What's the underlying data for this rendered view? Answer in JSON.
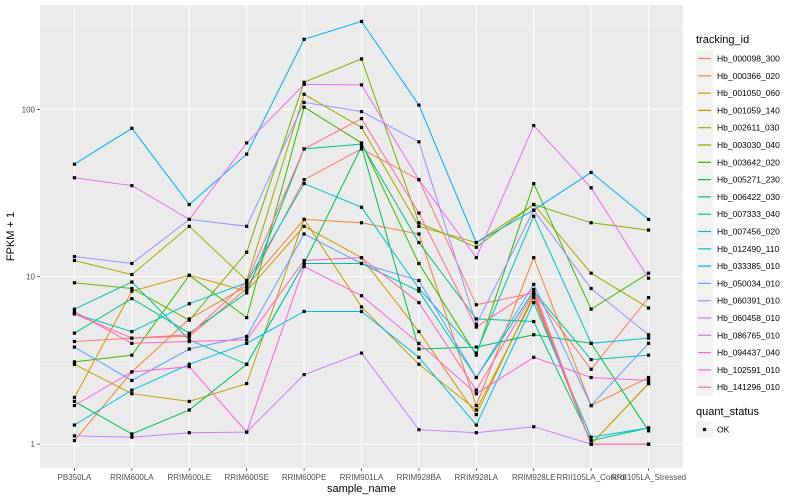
{
  "chart_data": {
    "type": "line",
    "title": "",
    "xlabel": "sample_name",
    "ylabel": "FPKM + 1",
    "yscale": "log10",
    "ylim": [
      0.72,
      420
    ],
    "yticks": [
      1,
      10,
      100
    ],
    "ytick_labels": [
      "1",
      "10",
      "100"
    ],
    "grid": true,
    "categories": [
      "PB350LA",
      "RRIM600LA",
      "RRIM600LE",
      "RRIM600SE",
      "RRIM600PE",
      "RRIM901LA",
      "RRIM928BA",
      "RRIM928LA",
      "RRIM928LE",
      "RRII105LA_Control",
      "RRII105LA_Stressed"
    ],
    "legend": {
      "position": "right",
      "color_title": "tracking_id",
      "shape_title": "quant_status",
      "shape_entries": [
        "OK"
      ]
    },
    "series": [
      {
        "name": "Hb_000098_300",
        "color": "#F8766D",
        "values": [
          4.1,
          4.3,
          4.4,
          8.5,
          38,
          58,
          38,
          6.8,
          8.0,
          2.8,
          7.5
        ]
      },
      {
        "name": "Hb_000366_020",
        "color": "#EA8331",
        "values": [
          1.05,
          2.7,
          5.6,
          8.8,
          22,
          21,
          18,
          1.7,
          13,
          1.7,
          2.5
        ]
      },
      {
        "name": "Hb_001050_060",
        "color": "#D89000",
        "values": [
          1.9,
          8.2,
          10.2,
          8.2,
          20,
          13,
          4.7,
          1.5,
          7.8,
          1.0,
          2.3
        ]
      },
      {
        "name": "Hb_001059_140",
        "color": "#C09B00",
        "values": [
          3.0,
          2.0,
          1.8,
          2.3,
          22,
          6.6,
          3.0,
          1.6,
          7.5,
          1.0,
          2.3
        ]
      },
      {
        "name": "Hb_002611_030",
        "color": "#A3A500",
        "values": [
          12.5,
          10.3,
          20,
          9.5,
          123,
          78,
          20,
          16,
          27,
          10.5,
          6.5
        ]
      },
      {
        "name": "Hb_003030_040",
        "color": "#7CAE00",
        "values": [
          9.2,
          8.5,
          5.5,
          14,
          145,
          200,
          21,
          15,
          27,
          21,
          19
        ]
      },
      {
        "name": "Hb_003642_020",
        "color": "#39B600",
        "values": [
          3.1,
          3.4,
          10.2,
          5.7,
          103,
          63,
          12,
          3.4,
          36,
          6.4,
          10.5
        ]
      },
      {
        "name": "Hb_005271_230",
        "color": "#00BB4E",
        "values": [
          1.8,
          1.15,
          1.6,
          3.0,
          12,
          60,
          3.7,
          3.8,
          4.5,
          4.0,
          1.2
        ]
      },
      {
        "name": "Hb_006422_030",
        "color": "#00BF7D",
        "values": [
          4.6,
          7.4,
          4.6,
          8.0,
          58,
          62,
          16,
          5.6,
          5.4,
          1.05,
          1.25
        ]
      },
      {
        "name": "Hb_007333_040",
        "color": "#00C1A3",
        "values": [
          6.4,
          9.3,
          4.2,
          3.0,
          12,
          12,
          8.2,
          2.5,
          8.2,
          3.2,
          3.4
        ]
      },
      {
        "name": "Hb_007456_020",
        "color": "#00BFC4",
        "values": [
          6.0,
          4.7,
          6.9,
          9.2,
          36,
          26,
          8.5,
          3.5,
          23,
          4.0,
          4.3
        ]
      },
      {
        "name": "Hb_012490_110",
        "color": "#00B8E7",
        "values": [
          1.3,
          2.1,
          3.0,
          4.0,
          6.2,
          6.2,
          3.3,
          1.3,
          7.0,
          1.1,
          1.25
        ]
      },
      {
        "name": "Hb_033385_010",
        "color": "#00A9FF",
        "values": [
          47,
          77,
          27,
          54,
          262,
          335,
          106,
          16,
          25,
          42,
          22
        ]
      },
      {
        "name": "Hb_050034_010",
        "color": "#619CFF",
        "values": [
          3.8,
          2.4,
          3.7,
          4.4,
          18,
          12,
          9.5,
          2.5,
          9.0,
          1.7,
          4.0
        ]
      },
      {
        "name": "Hb_060391_010",
        "color": "#9590FF",
        "values": [
          13.2,
          12,
          22,
          20,
          110,
          97,
          64,
          5.2,
          25,
          8.5,
          4.5
        ]
      },
      {
        "name": "Hb_060458_010",
        "color": "#C77CFF",
        "values": [
          1.12,
          1.1,
          1.17,
          1.18,
          2.6,
          3.5,
          1.22,
          1.17,
          1.27,
          1.0,
          1.0
        ]
      },
      {
        "name": "Hb_086765_010",
        "color": "#E76BF3",
        "values": [
          39,
          35,
          22,
          63,
          141,
          140,
          38,
          13,
          80,
          34,
          9.8
        ]
      },
      {
        "name": "Hb_094437_040",
        "color": "#FA62DB",
        "values": [
          1.7,
          2.7,
          2.9,
          1.18,
          11.5,
          7.7,
          4.0,
          2.0,
          3.3,
          2.5,
          2.4
        ]
      },
      {
        "name": "Hb_102591_010",
        "color": "#FF62BC",
        "values": [
          6.2,
          4.0,
          4.1,
          4.2,
          12.5,
          13,
          7.0,
          2.1,
          8.0,
          1.0,
          1.0
        ]
      },
      {
        "name": "Hb_141296_010",
        "color": "#FF6C91",
        "values": [
          6.0,
          4.3,
          4.5,
          9.3,
          58,
          88,
          24,
          5.0,
          8.4,
          1.0,
          1.0
        ]
      }
    ]
  }
}
